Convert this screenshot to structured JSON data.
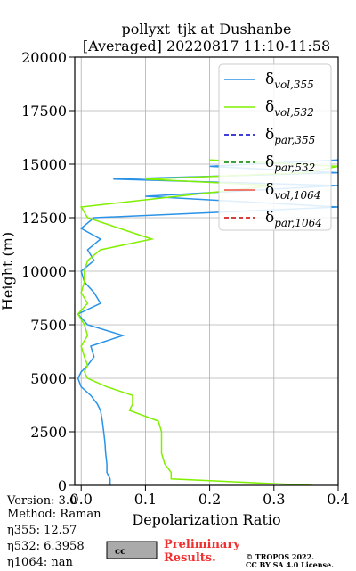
{
  "chart_data": {
    "type": "line",
    "title": "pollyxt_tjk at Dushanbe",
    "subtitle": "[Averaged] 20220817 11:10-11:58",
    "x_label": "Depolarization Ratio",
    "y_label": "Height (m)",
    "xlim": [
      -0.01,
      0.4
    ],
    "xticks": [
      {
        "value": 0,
        "label": "0.0"
      },
      0.1,
      0.2,
      0.3,
      0.4
    ],
    "ylim": [
      0,
      20000
    ],
    "yticks": [
      0,
      2500,
      5000,
      7500,
      10000,
      12500,
      15000,
      17500,
      20000
    ],
    "grid": true,
    "legend": "upper right",
    "heights": [
      0,
      300,
      600,
      1000,
      1500,
      2000,
      2500,
      3000,
      3500,
      3800,
      4200,
      4600,
      5000,
      5300,
      5600,
      6000,
      6500,
      7000,
      7500,
      8000,
      8500,
      9000,
      9500,
      10000,
      10500,
      11000,
      11500,
      12000,
      12500,
      13000,
      13500,
      14000,
      14300,
      14600,
      14900,
      15200
    ],
    "series": [
      {
        "name": "δvol,355",
        "color": "#2a93e8",
        "dash": false,
        "values": [
          0.045,
          0.045,
          0.04,
          0.04,
          0.038,
          0.037,
          0.035,
          0.033,
          0.03,
          0.025,
          0.015,
          0.0,
          -0.005,
          0.0,
          0.01,
          0.02,
          0.015,
          0.065,
          0.01,
          -0.005,
          0.03,
          0.02,
          0.005,
          0.0,
          0.02,
          0.01,
          0.03,
          0.0,
          0.02,
          0.4,
          0.1,
          0.4,
          0.05,
          0.4,
          0.2,
          0.4
        ]
      },
      {
        "name": "δvol,532",
        "color": "#80f000",
        "dash": false,
        "values": [
          0.36,
          0.14,
          0.14,
          0.13,
          0.125,
          0.125,
          0.125,
          0.12,
          0.075,
          0.08,
          0.08,
          0.04,
          0.01,
          0.005,
          0.01,
          0.005,
          0.0,
          0.01,
          0.005,
          -0.005,
          0.01,
          0.0,
          0.005,
          0.005,
          0.01,
          0.03,
          0.11,
          0.06,
          0.01,
          0.0,
          0.15,
          0.3,
          0.1,
          0.35,
          0.4,
          0.2
        ]
      },
      {
        "name": "δpar,355",
        "color": "#0000cc",
        "dash": true,
        "values": [
          null,
          null,
          null,
          null,
          null,
          null,
          null,
          null,
          null,
          null,
          null,
          null,
          null,
          null,
          null,
          null,
          null,
          null,
          null,
          null,
          null,
          null,
          null,
          null,
          null,
          null,
          null,
          null,
          null,
          null,
          null,
          null,
          null,
          null,
          null,
          null
        ]
      },
      {
        "name": "δpar,532",
        "color": "#008000",
        "dash": true,
        "values": [
          null,
          null,
          null,
          null,
          null,
          null,
          null,
          null,
          null,
          null,
          null,
          null,
          null,
          null,
          null,
          null,
          null,
          null,
          null,
          null,
          null,
          null,
          null,
          null,
          null,
          null,
          null,
          null,
          null,
          null,
          null,
          null,
          null,
          null,
          null,
          null
        ]
      },
      {
        "name": "δvol,1064",
        "color": "#f05040",
        "dash": false,
        "values": [
          null,
          null,
          null,
          null,
          null,
          null,
          null,
          null,
          null,
          null,
          null,
          null,
          null,
          null,
          null,
          null,
          null,
          null,
          null,
          null,
          null,
          null,
          null,
          null,
          null,
          null,
          null,
          null,
          null,
          null,
          null,
          null,
          null,
          null,
          null,
          null
        ]
      },
      {
        "name": "δpar,1064",
        "color": "#cc0000",
        "dash": true,
        "values": [
          null,
          null,
          null,
          null,
          null,
          null,
          null,
          null,
          null,
          null,
          null,
          null,
          null,
          null,
          null,
          null,
          null,
          null,
          null,
          null,
          null,
          null,
          null,
          null,
          null,
          null,
          null,
          null,
          null,
          null,
          null,
          null,
          null,
          null,
          null,
          null
        ]
      }
    ]
  },
  "info": [
    "Version: 3.0",
    "Method: Raman",
    "η355:  12.57",
    "η532: 6.3958",
    "η1064:    nan"
  ],
  "logo": {
    "badge": "cc",
    "text": [
      "Preliminary",
      "Results."
    ]
  },
  "copyright": [
    "© TROPOS 2022.",
    "CC BY SA 4.0 License."
  ]
}
